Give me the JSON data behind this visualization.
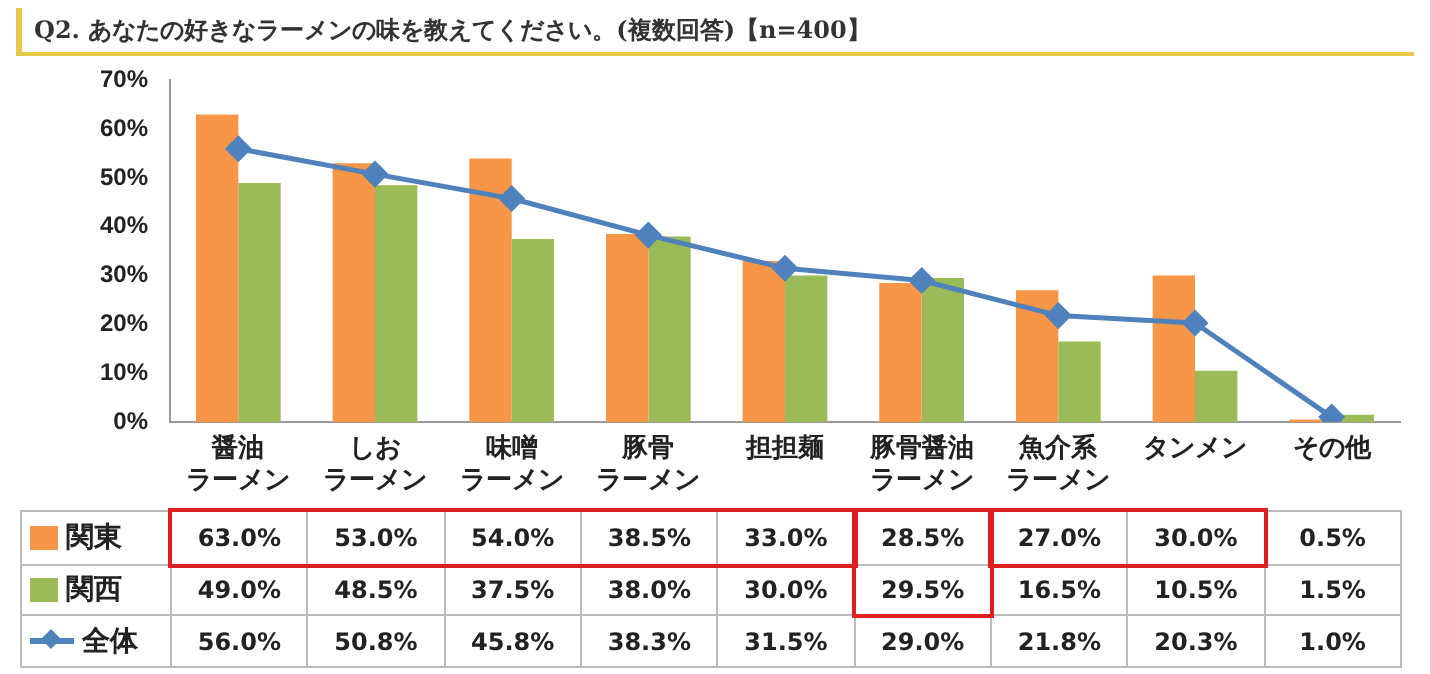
{
  "chart_data": {
    "type": "bar",
    "title": "Q2. あなたの好きなラーメンの味を教えてください。(複数回答)【n=400】",
    "categories": [
      "醤油ラーメン",
      "しおラーメン",
      "味噌ラーメン",
      "豚骨ラーメン",
      "担担麺",
      "豚骨醤油ラーメン",
      "魚介系ラーメン",
      "タンメン",
      "その他"
    ],
    "series": [
      {
        "name": "関東",
        "color": "#f79646",
        "values": [
          63.0,
          53.0,
          54.0,
          38.5,
          33.0,
          28.5,
          27.0,
          30.0,
          0.5
        ],
        "value_labels": [
          "63.0%",
          "53.0%",
          "54.0%",
          "38.5%",
          "33.0%",
          "28.5%",
          "27.0%",
          "30.0%",
          "0.5%"
        ]
      },
      {
        "name": "関西",
        "color": "#9bbb59",
        "values": [
          49.0,
          48.5,
          37.5,
          38.0,
          30.0,
          29.5,
          16.5,
          10.5,
          1.5
        ],
        "value_labels": [
          "49.0%",
          "48.5%",
          "37.5%",
          "38.0%",
          "30.0%",
          "29.5%",
          "16.5%",
          "10.5%",
          "1.5%"
        ]
      },
      {
        "name": "全体",
        "type": "line",
        "color": "#4f81bd",
        "values": [
          56.0,
          50.8,
          45.8,
          38.3,
          31.5,
          29.0,
          21.8,
          20.3,
          1.0
        ],
        "value_labels": [
          "56.0%",
          "50.8%",
          "45.8%",
          "38.3%",
          "31.5%",
          "29.0%",
          "21.8%",
          "20.3%",
          "1.0%"
        ]
      }
    ],
    "ylim": [
      0,
      70
    ],
    "yticks": [
      {
        "value": 0,
        "label": "0%"
      },
      {
        "value": 10,
        "label": "10%"
      },
      {
        "value": 20,
        "label": "20%"
      },
      {
        "value": 30,
        "label": "30%"
      },
      {
        "value": 40,
        "label": "40%"
      },
      {
        "value": 50,
        "label": "50%"
      },
      {
        "value": 60,
        "label": "60%"
      },
      {
        "value": 70,
        "label": "70%"
      }
    ],
    "grid": false,
    "legend": "bottom left",
    "marker": "diamond",
    "line_style": "solid"
  }
}
